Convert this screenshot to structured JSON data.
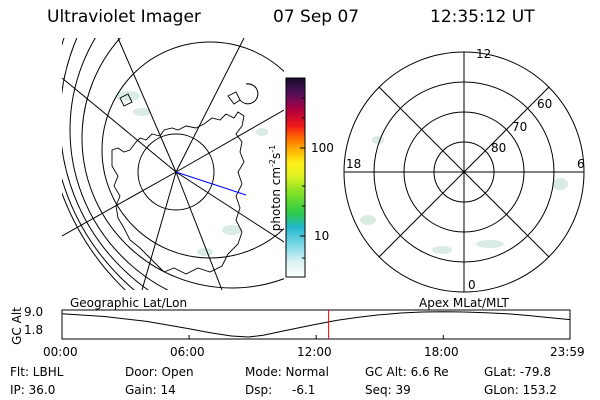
{
  "header": {
    "instrument": "Ultraviolet Imager",
    "date": "07 Sep 07",
    "time": "12:35:12 UT"
  },
  "maps": {
    "left_label": "Geographic Lat/Lon",
    "right_label": "Apex MLat/MLT",
    "mlt_labels": [
      "12",
      "18",
      "6",
      "0"
    ],
    "mlat_labels": [
      "60",
      "70",
      "80"
    ]
  },
  "colorbar": {
    "label": "photon cm",
    "label_sup1": "-2",
    "label_mid": "s",
    "label_sup2": "-1",
    "ticks": [
      "100",
      "10"
    ]
  },
  "chart_data": {
    "type": "line",
    "title": "",
    "ylabel": "GC Alt",
    "yticks": [
      "9.0",
      "1.8"
    ],
    "ylim": [
      1.8,
      9.0
    ],
    "xticks": [
      "00:00",
      "06:00",
      "12:00",
      "18:00",
      "23:59"
    ],
    "xlim_hours": [
      0,
      23.983
    ],
    "current_time_hours": 12.587,
    "series": [
      {
        "x_hours": [
          0,
          2,
          4,
          6,
          7,
          8,
          8.8,
          9.5,
          10.5,
          12,
          13,
          14,
          15,
          16,
          17,
          18,
          19,
          20,
          21,
          22,
          23,
          23.98
        ],
        "values": [
          8.5,
          7.7,
          6.3,
          4.2,
          3.0,
          2.1,
          1.8,
          2.3,
          3.6,
          5.5,
          6.6,
          7.5,
          8.2,
          8.7,
          9.0,
          9.1,
          9.0,
          8.8,
          8.5,
          8.0,
          7.4,
          6.8
        ]
      }
    ]
  },
  "footer": {
    "col1": [
      "Flt: LBHL",
      "IP: 36.0"
    ],
    "col2": [
      "Door: Open",
      "Gain: 14"
    ],
    "col3a": [
      "Mode: Normal",
      "Dsp:"
    ],
    "dsp_value": "-6.1",
    "col4": [
      "GC Alt: 6.6 Re",
      "Seq: 39"
    ],
    "col5": [
      "GLat: -79.8",
      "GLon: 153.2"
    ]
  },
  "colors": {
    "ink": "#000000",
    "cursor": "#ff0000",
    "sun_line": "#0000ff",
    "faint_aurora": "#d4e8e0"
  }
}
